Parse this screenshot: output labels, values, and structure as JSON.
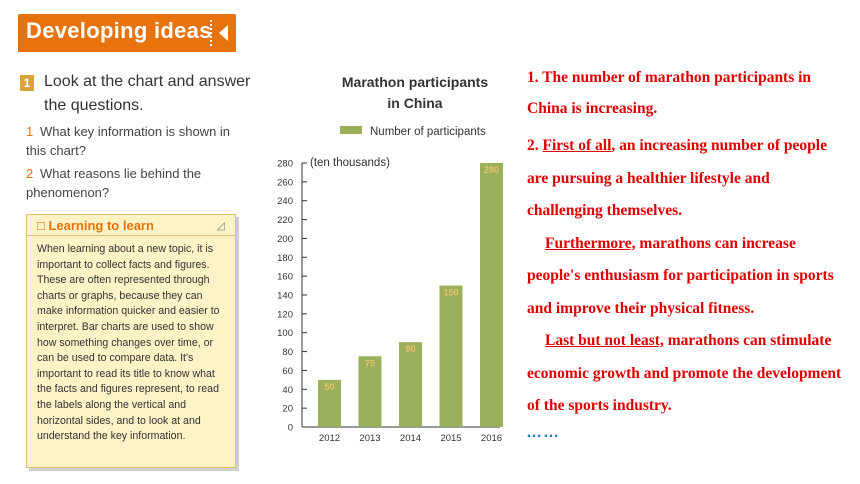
{
  "header": {
    "title": "Developing ideas"
  },
  "task": {
    "badge": "1",
    "title": "Look at the chart and answer the questions.",
    "questions": [
      {
        "num": "1",
        "text": "What key information is shown in this chart?"
      },
      {
        "num": "2",
        "text": "What reasons lie behind the phenomenon?"
      }
    ]
  },
  "learning_box": {
    "title": "Learning to learn",
    "text": "When learning about a new topic, it is important to collect facts and figures. These are often represented through charts or graphs, because they can make information quicker and easier to interpret. Bar charts are used to show how something changes over time, or can be used to compare data. It's important to read its title to know what the facts and figures represent, to read the labels along the vertical and horizontal sides, and to look at and understand the key information."
  },
  "answers": {
    "a1": "1. The number of marathon participants in China is increasing.",
    "a2_prefix": "2. ",
    "a2_u1": "First of all",
    "a2_rest1": ", an increasing number of people are pursuing a healthier lifestyle and challenging themselves.",
    "a2_u2": "Furthermore,",
    "a2_rest2": " marathons can increase people's enthusiasm for participation in sports and improve their physical fitness.",
    "a2_u3": "Last but not least,",
    "a2_rest3": " marathons can stimulate economic growth and promote the development of the sports industry.",
    "ellipsis": "……"
  },
  "colors": {
    "bar": "#9bb05a",
    "accent": "#e8720c",
    "answer": "#e00000"
  },
  "chart_data": {
    "type": "bar",
    "title_line1": "Marathon participants",
    "title_line2": "in China",
    "legend": "Number of participants",
    "unit_label": "(ten thousands)",
    "categories": [
      "2012",
      "2013",
      "2014",
      "2015",
      "2016"
    ],
    "values": [
      50,
      75,
      90,
      150,
      280
    ],
    "ylim": [
      0,
      280
    ],
    "yticks": [
      0,
      20,
      40,
      60,
      80,
      100,
      120,
      140,
      160,
      180,
      200,
      220,
      240,
      260,
      280
    ],
    "legend_position": "top-right",
    "grid": false
  }
}
